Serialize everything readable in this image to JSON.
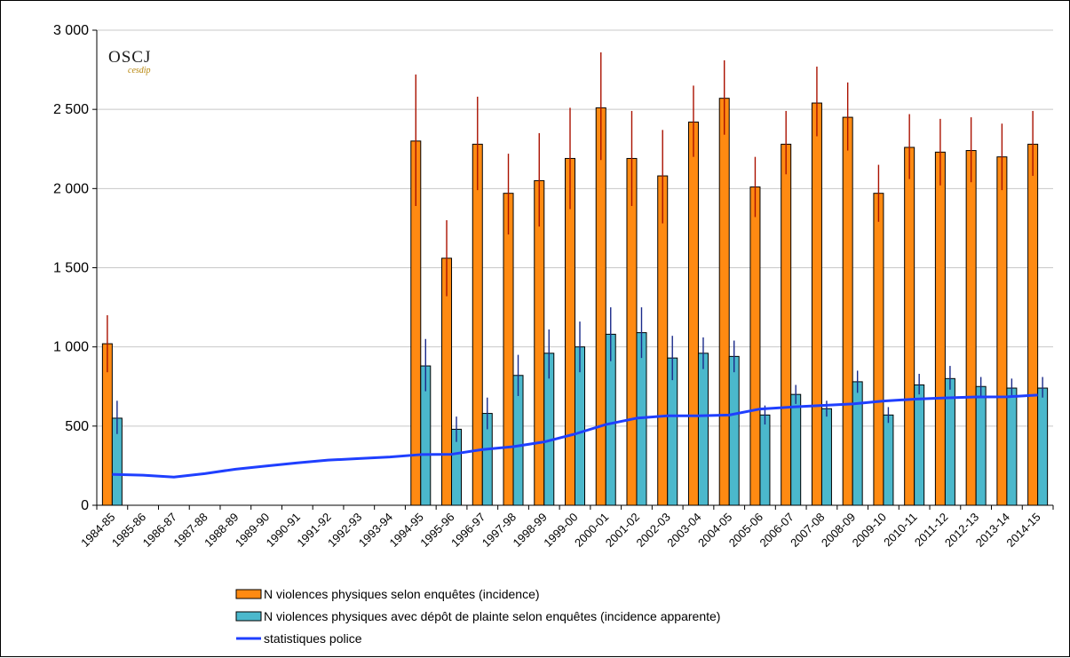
{
  "logo": {
    "main": "OSCJ",
    "sub": "cesdip"
  },
  "colors": {
    "series_a": "#ff8a12",
    "series_b": "#4bb8cc",
    "line": "#1f3fff",
    "error_a": "#aa1100",
    "error_b": "#1a2a8a",
    "grid": "#c8c8c8"
  },
  "chart_data": {
    "type": "bar",
    "categories": [
      "1984-85",
      "1985-86",
      "1986-87",
      "1987-88",
      "1988-89",
      "1989-90",
      "1990-91",
      "1991-92",
      "1992-93",
      "1993-94",
      "1994-95",
      "1995-96",
      "1996-97",
      "1997-98",
      "1998-99",
      "1999-00",
      "2000-01",
      "2001-02",
      "2002-03",
      "2003-04",
      "2004-05",
      "2005-06",
      "2006-07",
      "2007-08",
      "2008-09",
      "2009-10",
      "2010-11",
      "2011-12",
      "2012-13",
      "2013-14",
      "2014-15"
    ],
    "ylim": [
      0,
      3000
    ],
    "yticks": [
      0,
      500,
      1000,
      1500,
      2000,
      2500,
      3000
    ],
    "ytick_labels": [
      "0",
      "500",
      "1 000",
      "1 500",
      "2 000",
      "2 500",
      "3 000"
    ],
    "grid": true,
    "legend_position": "bottom",
    "series": [
      {
        "name": "N violences physiques selon enquêtes (incidence)",
        "kind": "bar",
        "values": [
          1020,
          null,
          null,
          null,
          null,
          null,
          null,
          null,
          null,
          null,
          2300,
          1560,
          2280,
          1970,
          2050,
          2190,
          2510,
          2190,
          2080,
          2420,
          2570,
          2010,
          2280,
          2540,
          2450,
          1970,
          2260,
          2230,
          2240,
          2200,
          2280
        ],
        "error_low": [
          840,
          null,
          null,
          null,
          null,
          null,
          null,
          null,
          null,
          null,
          1890,
          1320,
          1990,
          1710,
          1760,
          1870,
          2180,
          1890,
          1780,
          2200,
          2340,
          1820,
          2090,
          2330,
          2240,
          1790,
          2060,
          2020,
          2040,
          1990,
          2080
        ],
        "error_high": [
          1200,
          null,
          null,
          null,
          null,
          null,
          null,
          null,
          null,
          null,
          2720,
          1800,
          2580,
          2220,
          2350,
          2510,
          2860,
          2490,
          2370,
          2650,
          2810,
          2200,
          2490,
          2770,
          2670,
          2150,
          2470,
          2440,
          2450,
          2410,
          2490
        ]
      },
      {
        "name": "N violences physiques avec dépôt de plainte selon enquêtes (incidence apparente)",
        "kind": "bar",
        "values": [
          550,
          null,
          null,
          null,
          null,
          null,
          null,
          null,
          null,
          null,
          880,
          480,
          580,
          820,
          960,
          1000,
          1080,
          1090,
          930,
          960,
          940,
          570,
          700,
          610,
          780,
          570,
          760,
          800,
          750,
          740,
          740
        ],
        "error_low": [
          450,
          null,
          null,
          null,
          null,
          null,
          null,
          null,
          null,
          null,
          720,
          400,
          480,
          690,
          800,
          840,
          910,
          930,
          790,
          860,
          840,
          510,
          640,
          560,
          710,
          520,
          700,
          730,
          690,
          680,
          680
        ],
        "error_high": [
          660,
          null,
          null,
          null,
          null,
          null,
          null,
          null,
          null,
          null,
          1050,
          560,
          680,
          950,
          1110,
          1160,
          1250,
          1250,
          1070,
          1060,
          1040,
          630,
          760,
          660,
          850,
          620,
          830,
          880,
          810,
          800,
          810
        ]
      },
      {
        "name": "statistiques police",
        "kind": "line",
        "values": [
          195,
          190,
          178,
          200,
          228,
          248,
          268,
          285,
          295,
          305,
          320,
          322,
          352,
          370,
          400,
          450,
          510,
          550,
          565,
          565,
          570,
          608,
          620,
          630,
          640,
          658,
          670,
          678,
          684,
          685,
          696
        ]
      }
    ]
  }
}
